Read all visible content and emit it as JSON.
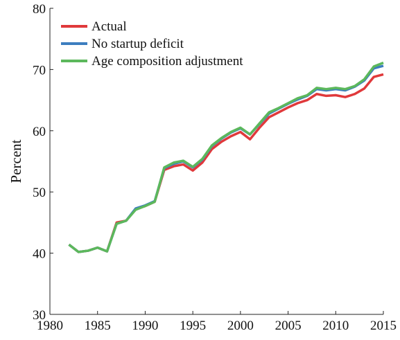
{
  "chart_data": {
    "type": "line",
    "y_label": "Percent",
    "x": [
      1982,
      1983,
      1984,
      1985,
      1986,
      1987,
      1988,
      1989,
      1990,
      1991,
      1992,
      1993,
      1994,
      1995,
      1996,
      1997,
      1998,
      1999,
      2000,
      2001,
      2002,
      2003,
      2004,
      2005,
      2006,
      2007,
      2008,
      2009,
      2010,
      2011,
      2012,
      2013,
      2014,
      2015
    ],
    "series": [
      {
        "name": "Actual",
        "color": "#e0393b",
        "values": [
          41.4,
          40.2,
          40.4,
          40.9,
          40.3,
          45.0,
          45.3,
          47.2,
          47.7,
          48.4,
          53.6,
          54.2,
          54.5,
          53.5,
          54.8,
          57.0,
          58.2,
          59.1,
          59.8,
          58.6,
          60.5,
          62.2,
          63.0,
          63.8,
          64.5,
          65.0,
          66.0,
          65.7,
          65.8,
          65.5,
          66.0,
          66.9,
          68.8,
          69.2
        ]
      },
      {
        "name": "No startup deficit",
        "color": "#3d7ebf",
        "values": [
          41.4,
          40.2,
          40.4,
          40.9,
          40.3,
          44.8,
          45.3,
          47.3,
          47.8,
          48.5,
          53.9,
          54.6,
          55.0,
          54.0,
          55.3,
          57.5,
          58.7,
          59.7,
          60.4,
          59.4,
          61.1,
          62.8,
          63.6,
          64.4,
          65.1,
          65.7,
          66.8,
          66.6,
          66.8,
          66.6,
          67.2,
          68.2,
          70.2,
          70.6
        ]
      },
      {
        "name": "Age composition adjustment",
        "color": "#5cb85c",
        "values": [
          41.4,
          40.2,
          40.4,
          40.9,
          40.3,
          44.8,
          45.3,
          47.1,
          47.7,
          48.4,
          54.0,
          54.8,
          55.1,
          54.1,
          55.4,
          57.6,
          58.8,
          59.8,
          60.5,
          59.4,
          61.2,
          63.0,
          63.7,
          64.5,
          65.3,
          65.8,
          67.0,
          66.8,
          67.0,
          66.8,
          67.3,
          68.4,
          70.5,
          71.1
        ]
      }
    ],
    "xlim": [
      1980,
      2015
    ],
    "xticks": [
      1980,
      1985,
      1990,
      1995,
      2000,
      2005,
      2010,
      2015
    ],
    "ylim": [
      30,
      80
    ],
    "yticks": [
      30,
      40,
      50,
      60,
      70,
      80
    ],
    "legend": "upper-left"
  }
}
